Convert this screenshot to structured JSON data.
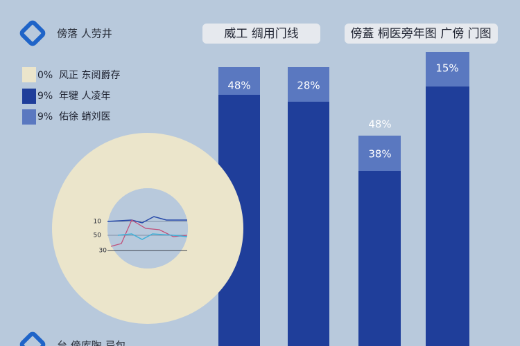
{
  "header": {
    "title": "傍落 人劳井"
  },
  "headings": [
    "威工 绸用门线",
    "傍蓋 桐医旁年图 广傍 门图"
  ],
  "legend": [
    {
      "value": "0%",
      "label": "风正 东阅爵存"
    },
    {
      "value": "9%",
      "label": "年犍 人凌年"
    },
    {
      "value": "9%",
      "label": "佑徐 蛸刘医"
    }
  ],
  "bars": [
    {
      "label": "48%"
    },
    {
      "label": "28%"
    },
    {
      "label": "38%",
      "above_label": "48%"
    },
    {
      "label": "15%"
    }
  ],
  "inset_ticks": [
    "10",
    "50",
    "30"
  ],
  "footer": "台 傍库陶 忌包"
}
